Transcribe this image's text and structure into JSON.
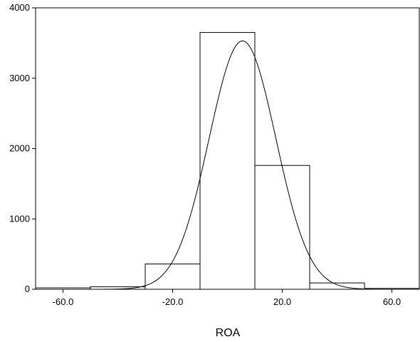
{
  "chart_data": {
    "type": "bar",
    "xlabel": "ROA",
    "ylabel": "",
    "xlim": [
      -70,
      70
    ],
    "ylim": [
      0,
      4000
    ],
    "grid": false,
    "bins": [
      {
        "x0": -70,
        "x1": -50,
        "value": 20
      },
      {
        "x0": -50,
        "x1": -30,
        "value": 35
      },
      {
        "x0": -30,
        "x1": -10,
        "value": 360
      },
      {
        "x0": -10,
        "x1": 10,
        "value": 3650
      },
      {
        "x0": 10,
        "x1": 30,
        "value": 1760
      },
      {
        "x0": 30,
        "x1": 50,
        "value": 90
      },
      {
        "x0": 50,
        "x1": 70,
        "value": 12
      }
    ],
    "normal_curve": {
      "peak": 3530,
      "mean": 5.5,
      "sd": 12.2
    },
    "x_ticks": [
      {
        "value": -60,
        "label": "-60.0"
      },
      {
        "value": -20,
        "label": "-20.0"
      },
      {
        "value": 20,
        "label": "20.0"
      },
      {
        "value": 60,
        "label": "60.0"
      }
    ],
    "y_ticks": [
      {
        "value": 0,
        "label": "0"
      },
      {
        "value": 1000,
        "label": "1000"
      },
      {
        "value": 2000,
        "label": "2000"
      },
      {
        "value": 3000,
        "label": "3000"
      },
      {
        "value": 4000,
        "label": "4000"
      }
    ]
  }
}
